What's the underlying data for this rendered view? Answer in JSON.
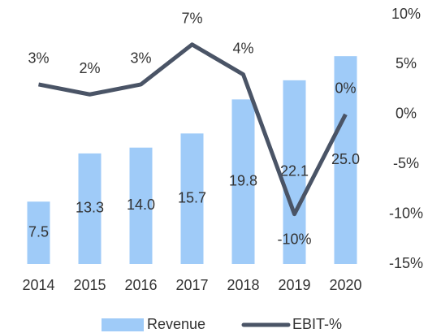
{
  "chart_data": {
    "type": "bar-line",
    "categories": [
      "2014",
      "2015",
      "2016",
      "2017",
      "2018",
      "2019",
      "2020"
    ],
    "series": [
      {
        "name": "Revenue",
        "type": "bar",
        "color": "#9fcbf8",
        "values": [
          7.5,
          13.3,
          14.0,
          15.7,
          19.8,
          22.1,
          25.0
        ],
        "value_labels": [
          "7.5",
          "13.3",
          "14.0",
          "15.7",
          "19.8",
          "22.1",
          "25.0"
        ]
      },
      {
        "name": "EBIT-%",
        "type": "line",
        "axis": "y2",
        "color": "#4a5466",
        "values": [
          3,
          2,
          3,
          7,
          4,
          -10,
          0
        ],
        "value_labels": [
          "3%",
          "2%",
          "3%",
          "7%",
          "4%",
          "-10%",
          "0%"
        ]
      }
    ],
    "ylim": [
      0,
      30
    ],
    "y2lim": [
      -15,
      10
    ],
    "y2ticks": [
      {
        "value": 10,
        "label": "10%"
      },
      {
        "value": 5,
        "label": "5%"
      },
      {
        "value": 0,
        "label": "0%"
      },
      {
        "value": -5,
        "label": "-5%"
      },
      {
        "value": -10,
        "label": "-10%"
      },
      {
        "value": -15,
        "label": "-15%"
      }
    ],
    "legend": "bottom"
  }
}
